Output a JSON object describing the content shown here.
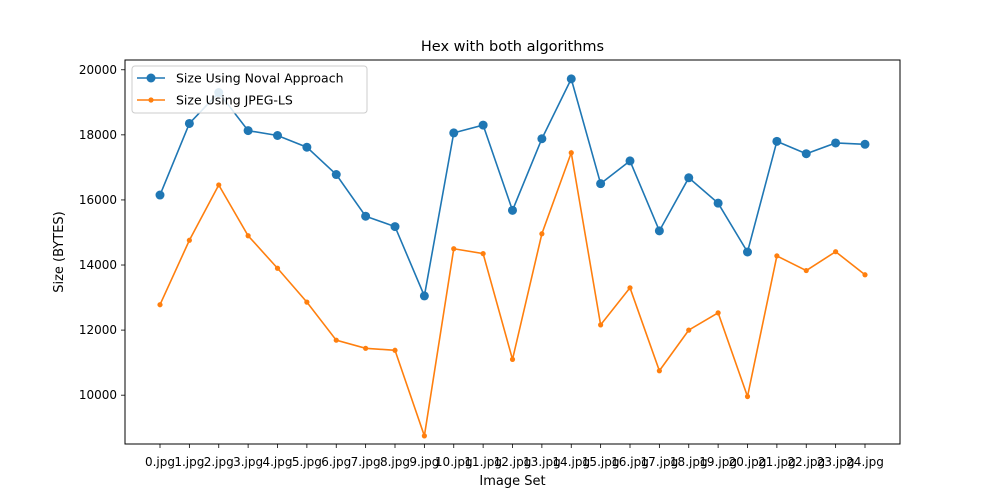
{
  "chart_data": {
    "type": "line",
    "title": "Hex with both algorithms",
    "xlabel": "Image Set",
    "ylabel": "Size (BYTES)",
    "categories": [
      "0.jpg",
      "1.jpg",
      "2.jpg",
      "3.jpg",
      "4.jpg",
      "5.jpg",
      "6.jpg",
      "7.jpg",
      "8.jpg",
      "9.jpg",
      "10.jpg",
      "11.jpg",
      "12.jpg",
      "13.jpg",
      "14.jpg",
      "15.jpg",
      "16.jpg",
      "17.jpg",
      "18.jpg",
      "19.jpg",
      "20.jpg",
      "21.jpg",
      "22.jpg",
      "23.jpg",
      "24.jpg"
    ],
    "ylim": [
      8500,
      20300
    ],
    "yticks": [
      10000,
      12000,
      14000,
      16000,
      18000,
      20000
    ],
    "legend_position": "top-left",
    "grid": false,
    "series": [
      {
        "name": "Size Using Noval Approach",
        "color": "#1f77b4",
        "marker": "large-circle",
        "values": [
          16150,
          18350,
          19300,
          18130,
          17980,
          17620,
          16780,
          15500,
          15180,
          13050,
          18060,
          18300,
          15680,
          17880,
          19720,
          16500,
          17200,
          15050,
          16680,
          15900,
          14400,
          17800,
          17420,
          17750,
          17710
        ]
      },
      {
        "name": "Size Using JPEG-LS",
        "color": "#ff7f0e",
        "marker": "small-circle",
        "values": [
          12780,
          14760,
          16460,
          14900,
          13900,
          12860,
          11690,
          11440,
          11380,
          8750,
          14500,
          14350,
          11100,
          14960,
          17450,
          12160,
          13300,
          10750,
          12000,
          12530,
          9960,
          14280,
          13830,
          14410,
          13700
        ]
      }
    ]
  }
}
